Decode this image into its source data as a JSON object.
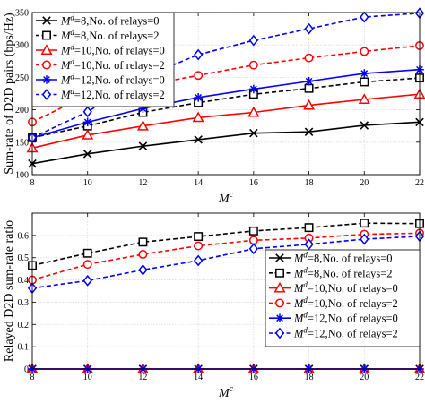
{
  "chart_data": [
    {
      "type": "line",
      "x": [
        8,
        10,
        12,
        14,
        16,
        18,
        20,
        22
      ],
      "xlabel": "M",
      "xlabel_sup": "c",
      "ylabel": "Sum-rate of D2D pairs (bps/Hz)",
      "xlim": [
        8,
        22
      ],
      "ylim": [
        100,
        350
      ],
      "xticks": [
        "8",
        "10",
        "12",
        "14",
        "16",
        "18",
        "20",
        "22"
      ],
      "yticks": [
        "100",
        "150",
        "200",
        "250",
        "300",
        "350"
      ],
      "grid": true,
      "legend_position": "top-left",
      "series": [
        {
          "name": "M^d=8,No. of relays=0",
          "color": "#000000",
          "dash": "solid",
          "marker": "x",
          "values": [
            117,
            132,
            144,
            154,
            164,
            166,
            176,
            181
          ]
        },
        {
          "name": "M^d=8,No. of relays=2",
          "color": "#000000",
          "dash": "dashed",
          "marker": "square",
          "values": [
            157,
            175,
            196,
            211,
            224,
            233,
            243,
            249
          ]
        },
        {
          "name": "M^d=10,No. of relays=0",
          "color": "#ff0000",
          "dash": "solid",
          "marker": "triangle",
          "values": [
            141,
            161,
            175,
            188,
            196,
            207,
            216,
            224
          ]
        },
        {
          "name": "M^d=10,No. of relays=2",
          "color": "#ff0000",
          "dash": "dashed",
          "marker": "circle",
          "values": [
            181,
            223,
            237,
            253,
            269,
            280,
            290,
            299
          ]
        },
        {
          "name": "M^d=12,No. of relays=0",
          "color": "#0000ff",
          "dash": "solid",
          "marker": "star",
          "values": [
            157,
            181,
            202,
            219,
            232,
            244,
            256,
            262
          ]
        },
        {
          "name": "M^d=12,No. of relays=2",
          "color": "#0000ff",
          "dash": "dashed",
          "marker": "diamond",
          "values": [
            157,
            197,
            250,
            285,
            307,
            325,
            343,
            349
          ]
        }
      ]
    },
    {
      "type": "line",
      "x": [
        8,
        10,
        12,
        14,
        16,
        18,
        20,
        22
      ],
      "xlabel": "M",
      "xlabel_sup": "c",
      "ylabel": "Relayed D2D sum-rate ratio",
      "xlim": [
        8,
        22
      ],
      "ylim": [
        0,
        0.7
      ],
      "xticks": [
        "8",
        "10",
        "12",
        "14",
        "16",
        "18",
        "20",
        "22"
      ],
      "yticks": [
        "0",
        "0.1",
        "0.2",
        "0.3",
        "0.4",
        "0.5",
        "0.6"
      ],
      "grid": true,
      "legend_position": "bottom-right",
      "series": [
        {
          "name": "M^d=8,No. of relays=0",
          "color": "#000000",
          "dash": "solid",
          "marker": "x",
          "values": [
            0,
            0,
            0,
            0,
            0,
            0,
            0,
            0
          ]
        },
        {
          "name": "M^d=8,No. of relays=2",
          "color": "#000000",
          "dash": "dashed",
          "marker": "square",
          "values": [
            0.465,
            0.52,
            0.57,
            0.595,
            0.62,
            0.635,
            0.655,
            0.653
          ]
        },
        {
          "name": "M^d=10,No. of relays=0",
          "color": "#ff0000",
          "dash": "solid",
          "marker": "triangle",
          "values": [
            0,
            0,
            0,
            0,
            0,
            0,
            0,
            0
          ]
        },
        {
          "name": "M^d=10,No. of relays=2",
          "color": "#ff0000",
          "dash": "dashed",
          "marker": "circle",
          "values": [
            0.4,
            0.47,
            0.515,
            0.553,
            0.578,
            0.588,
            0.605,
            0.61
          ]
        },
        {
          "name": "M^d=12,No. of relays=0",
          "color": "#0000ff",
          "dash": "solid",
          "marker": "star",
          "values": [
            0,
            0,
            0,
            0,
            0,
            0,
            0,
            0
          ]
        },
        {
          "name": "M^d=12,No. of relays=2",
          "color": "#0000ff",
          "dash": "dashed",
          "marker": "diamond",
          "values": [
            0.363,
            0.397,
            0.445,
            0.487,
            0.54,
            0.56,
            0.583,
            0.596
          ]
        }
      ]
    }
  ]
}
